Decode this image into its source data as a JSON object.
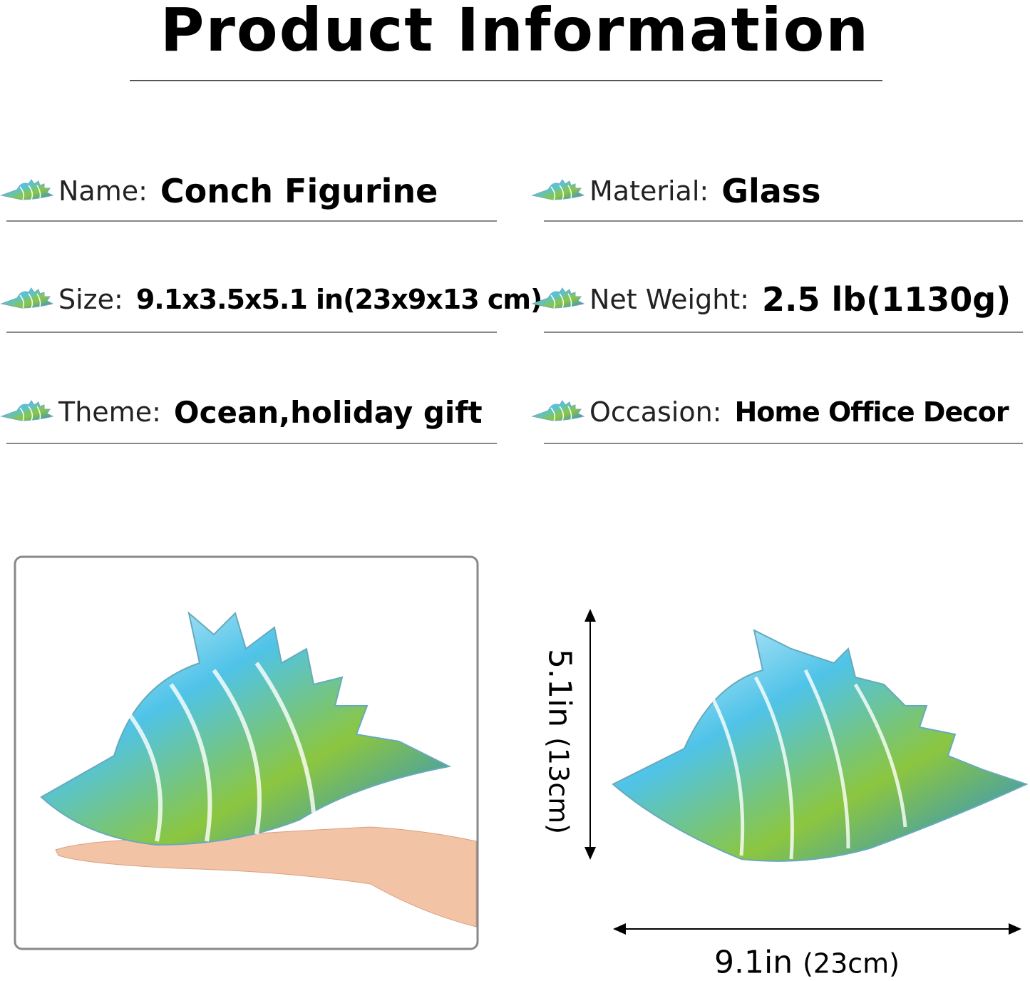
{
  "header": {
    "title": "Product Information"
  },
  "specs": [
    {
      "label": "Name:",
      "value": "Conch Figurine"
    },
    {
      "label": "Material:",
      "value": "Glass"
    },
    {
      "label": "Size:",
      "value": "9.1x3.5x5.1 in(23x9x13 cm)"
    },
    {
      "label": "Net Weight:",
      "value": "2.5 lb(1130g)"
    },
    {
      "label": "Theme:",
      "value": "Ocean,holiday gift"
    },
    {
      "label": "Occasion:",
      "value": "Home Office Decor"
    }
  ],
  "dimensions": {
    "height": {
      "main": "5.1in",
      "alt": "(13cm)"
    },
    "width": {
      "main": "9.1in",
      "alt": "(23cm)"
    }
  }
}
